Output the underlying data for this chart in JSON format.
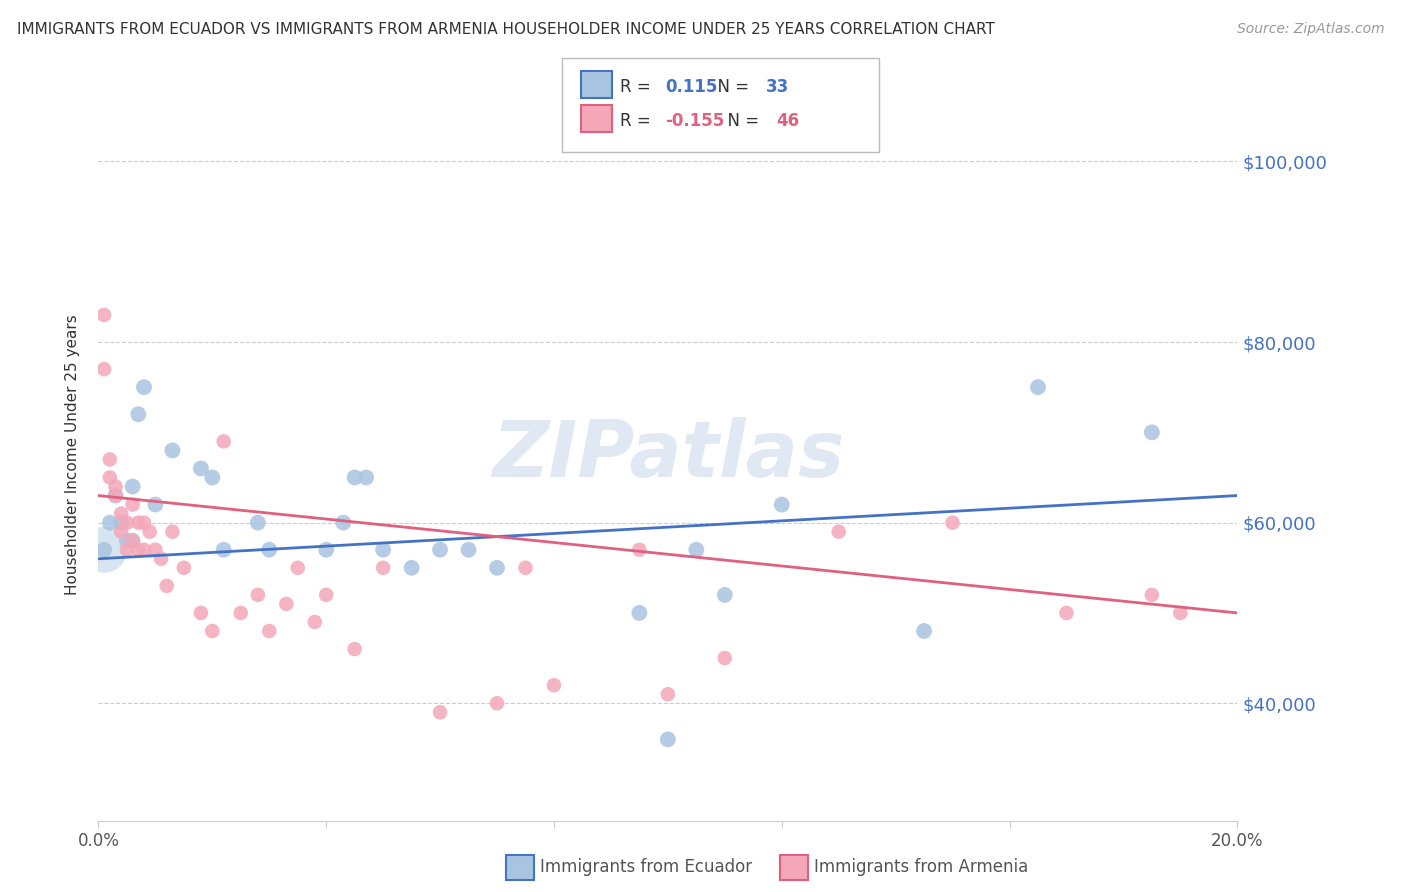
{
  "title": "IMMIGRANTS FROM ECUADOR VS IMMIGRANTS FROM ARMENIA HOUSEHOLDER INCOME UNDER 25 YEARS CORRELATION CHART",
  "source": "Source: ZipAtlas.com",
  "ylabel": "Householder Income Under 25 years",
  "watermark": "ZIPatlas",
  "xlim": [
    0.0,
    0.2
  ],
  "ylim": [
    27000,
    108000
  ],
  "ytick_values": [
    40000,
    60000,
    80000,
    100000
  ],
  "ytick_labels": [
    "$40,000",
    "$60,000",
    "$80,000",
    "$100,000"
  ],
  "ecuador_color": "#a8c4e0",
  "armenia_color": "#f4a7b9",
  "ecuador_line_color": "#4472c4",
  "armenia_line_color": "#e06080",
  "ecuador_R": 0.115,
  "ecuador_N": 33,
  "armenia_R": -0.155,
  "armenia_N": 46,
  "ecuador_x": [
    0.001,
    0.002,
    0.003,
    0.004,
    0.005,
    0.006,
    0.006,
    0.007,
    0.008,
    0.01,
    0.013,
    0.018,
    0.02,
    0.022,
    0.028,
    0.03,
    0.04,
    0.043,
    0.045,
    0.047,
    0.05,
    0.055,
    0.06,
    0.065,
    0.07,
    0.095,
    0.1,
    0.105,
    0.11,
    0.12,
    0.145,
    0.165,
    0.185
  ],
  "ecuador_y": [
    57000,
    60000,
    63000,
    60000,
    58000,
    64000,
    58000,
    72000,
    75000,
    62000,
    68000,
    66000,
    65000,
    57000,
    60000,
    57000,
    57000,
    60000,
    65000,
    65000,
    57000,
    55000,
    57000,
    57000,
    55000,
    50000,
    36000,
    57000,
    52000,
    62000,
    48000,
    75000,
    70000
  ],
  "ecuador_large_x": [
    0.001
  ],
  "ecuador_large_y": [
    57000
  ],
  "armenia_x": [
    0.001,
    0.001,
    0.002,
    0.002,
    0.003,
    0.003,
    0.004,
    0.004,
    0.005,
    0.005,
    0.006,
    0.006,
    0.007,
    0.007,
    0.008,
    0.008,
    0.009,
    0.01,
    0.011,
    0.012,
    0.013,
    0.015,
    0.018,
    0.02,
    0.022,
    0.025,
    0.028,
    0.03,
    0.033,
    0.035,
    0.038,
    0.04,
    0.045,
    0.05,
    0.06,
    0.07,
    0.075,
    0.08,
    0.095,
    0.1,
    0.11,
    0.13,
    0.15,
    0.17,
    0.185,
    0.19
  ],
  "armenia_y": [
    83000,
    77000,
    67000,
    65000,
    64000,
    63000,
    61000,
    59000,
    60000,
    57000,
    62000,
    58000,
    60000,
    57000,
    57000,
    60000,
    59000,
    57000,
    56000,
    53000,
    59000,
    55000,
    50000,
    48000,
    69000,
    50000,
    52000,
    48000,
    51000,
    55000,
    49000,
    52000,
    46000,
    55000,
    39000,
    40000,
    55000,
    42000,
    57000,
    41000,
    45000,
    59000,
    60000,
    50000,
    52000,
    50000
  ],
  "ecuador_size": 130,
  "armenia_size": 110,
  "background_color": "#ffffff",
  "grid_color": "#cccccc"
}
